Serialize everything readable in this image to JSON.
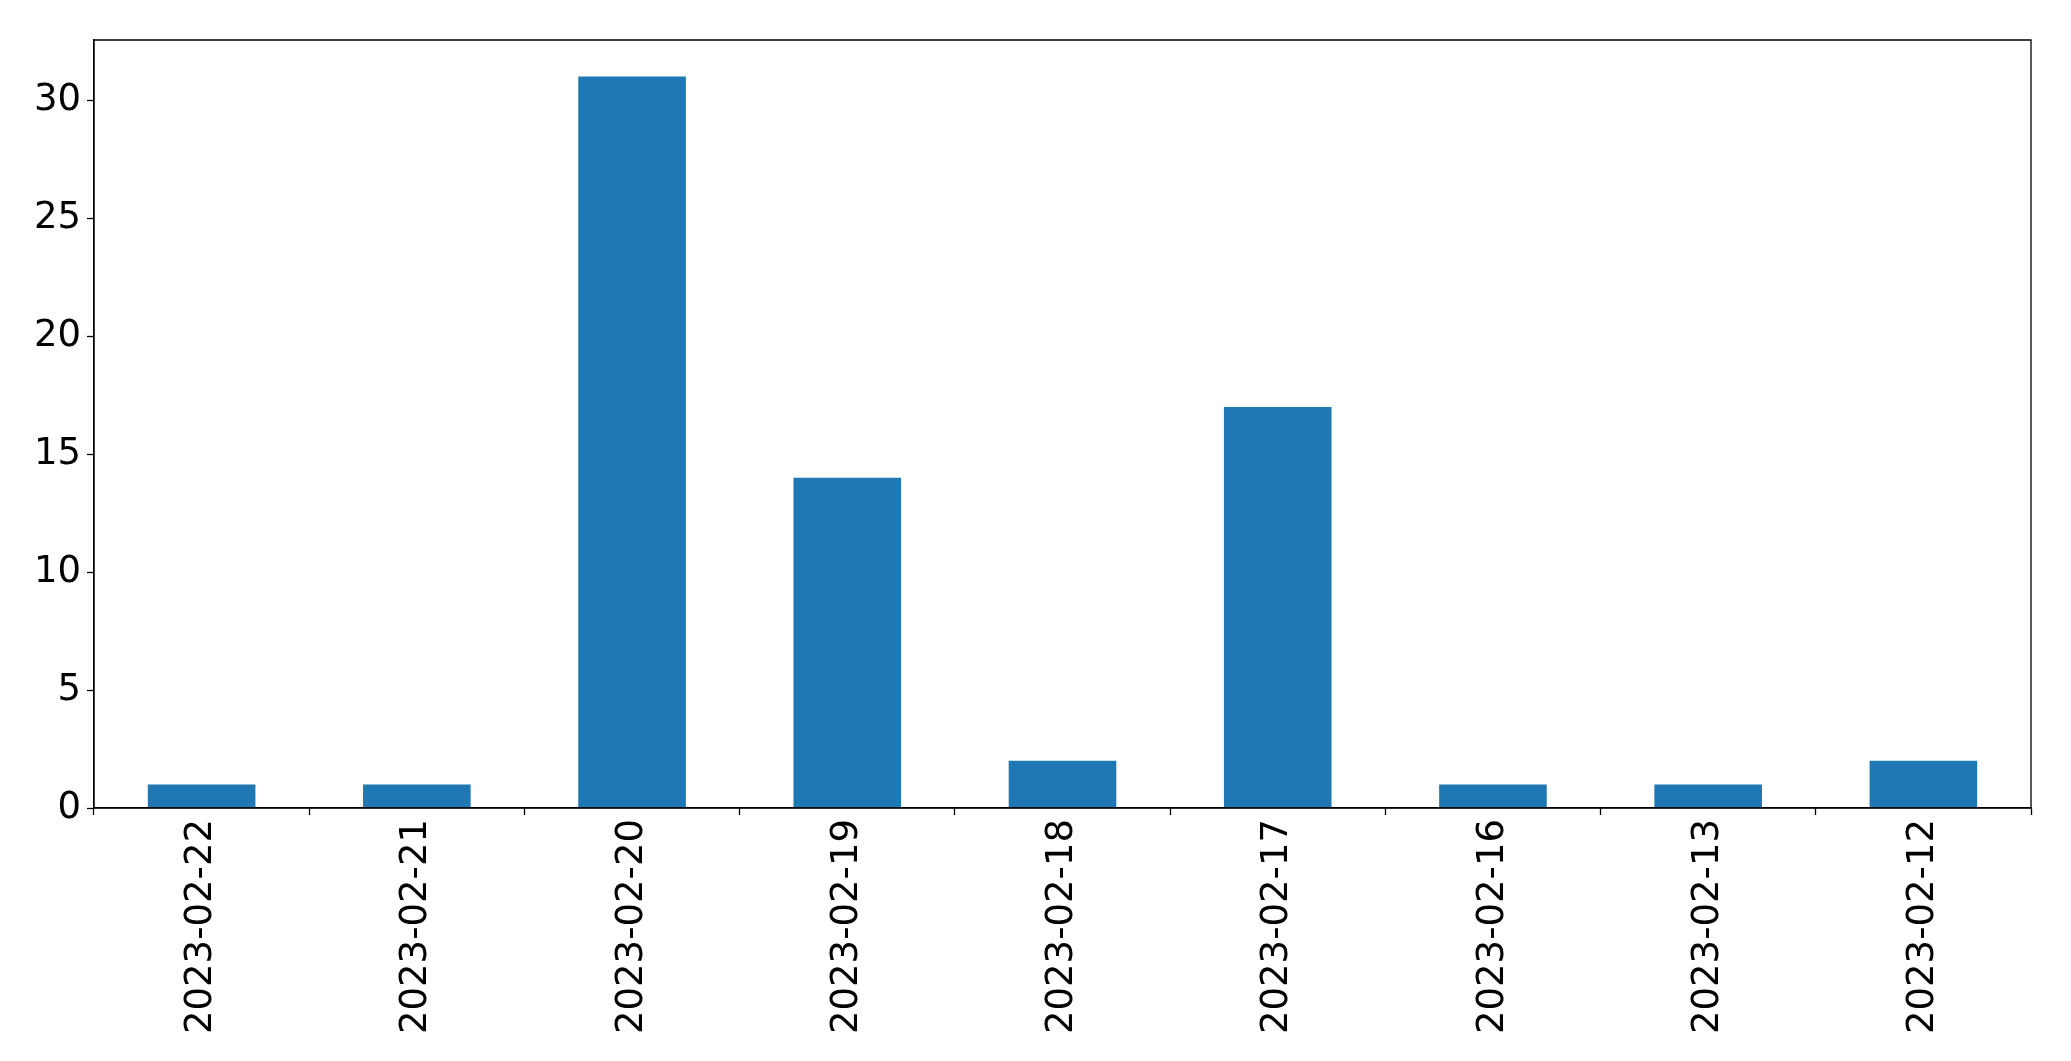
{
  "chart_data": {
    "type": "bar",
    "categories": [
      "2023-02-22",
      "2023-02-21",
      "2023-02-20",
      "2023-02-19",
      "2023-02-18",
      "2023-02-17",
      "2023-02-16",
      "2023-02-13",
      "2023-02-12"
    ],
    "values": [
      1,
      1,
      31,
      14,
      2,
      17,
      1,
      1,
      2
    ],
    "color": "#1f77b4",
    "ylim": [
      0,
      32.55
    ],
    "yticks": [
      0,
      5,
      10,
      15,
      20,
      25,
      30
    ]
  }
}
